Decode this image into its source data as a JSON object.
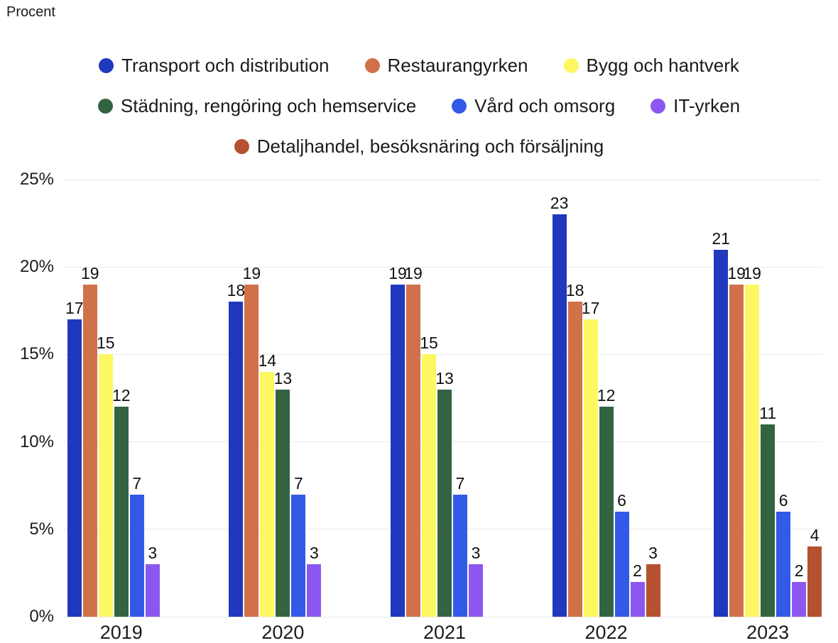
{
  "chart_data": {
    "type": "bar",
    "title": "",
    "ylabel": "Procent",
    "xlabel": "",
    "categories": [
      "2019",
      "2020",
      "2021",
      "2022",
      "2023"
    ],
    "series": [
      {
        "name": "Transport och distribution",
        "color": "#1f38be",
        "values": [
          17,
          18,
          19,
          23,
          21
        ]
      },
      {
        "name": "Restaurangyrken",
        "color": "#d0714a",
        "values": [
          19,
          19,
          19,
          18,
          19
        ]
      },
      {
        "name": "Bygg och hantverk",
        "color": "#fdf762",
        "values": [
          15,
          14,
          15,
          17,
          19
        ]
      },
      {
        "name": "Städning, rengöring och hemservice",
        "color": "#346342",
        "values": [
          12,
          13,
          13,
          12,
          11
        ]
      },
      {
        "name": "Vård och omsorg",
        "color": "#3359e8",
        "values": [
          7,
          7,
          7,
          6,
          6
        ]
      },
      {
        "name": "IT-yrken",
        "color": "#8c57f0",
        "values": [
          3,
          3,
          3,
          2,
          2
        ]
      },
      {
        "name": "Detaljhandel, besöksnäring och försäljning",
        "color": "#b4512e",
        "values": [
          null,
          null,
          null,
          3,
          4
        ]
      }
    ],
    "value_labels": true,
    "ylim": [
      0,
      25
    ],
    "yticks": [
      {
        "value": 25,
        "label": "25%"
      },
      {
        "value": 20,
        "label": "20%"
      },
      {
        "value": 15,
        "label": "15%"
      },
      {
        "value": 10,
        "label": "10%"
      },
      {
        "value": 5,
        "label": "5%"
      },
      {
        "value": 0,
        "label": "0%"
      }
    ],
    "grid": true,
    "gridline_color": "#e9e9e9",
    "legend_position": "top",
    "legend_rows": [
      [
        0,
        1,
        2
      ],
      [
        3,
        4,
        5
      ],
      [
        6
      ]
    ]
  }
}
